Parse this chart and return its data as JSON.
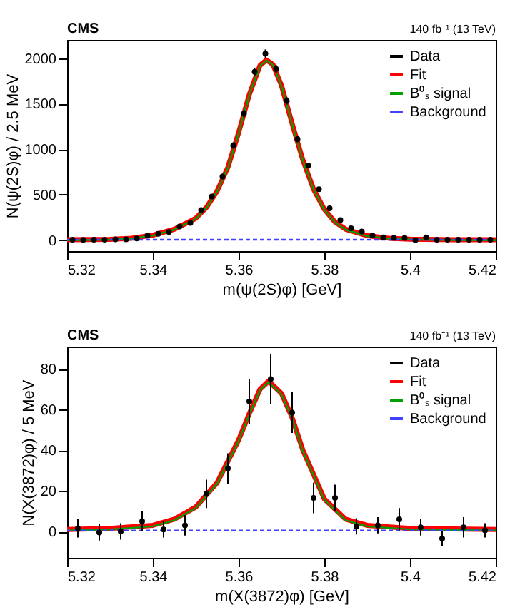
{
  "chart_data": [
    {
      "type": "scatter",
      "xlabel": "m(ψ(2S)φ) [GeV]",
      "ylabel": "N(ψ(2S)φ) / 2.5 MeV",
      "annotations": [
        "CMS",
        "140 fb⁻¹ (13 TeV)"
      ],
      "xlim": [
        5.32,
        5.42
      ],
      "xticks": [
        5.32,
        5.34,
        5.36,
        5.38,
        {
          "value": 5.4,
          "label": "5.4"
        },
        5.42
      ],
      "ylim": [
        -120,
        2200
      ],
      "yticks": [
        0,
        500,
        1000,
        1500,
        2000
      ],
      "legend": "top right",
      "grid": false,
      "series": [
        {
          "name": "Fit",
          "type": "line",
          "color": "#ff0000",
          "x": [
            5.32,
            5.33,
            5.335,
            5.34,
            5.345,
            5.35,
            5.3525,
            5.355,
            5.3575,
            5.36,
            5.3625,
            5.365,
            5.3665,
            5.368,
            5.37,
            5.3725,
            5.375,
            5.3775,
            5.38,
            5.3825,
            5.385,
            5.39,
            5.395,
            5.4,
            5.41,
            5.42
          ],
          "values": [
            5,
            10,
            22,
            55,
            120,
            240,
            360,
            540,
            800,
            1180,
            1600,
            1920,
            1980,
            1930,
            1700,
            1280,
            880,
            560,
            340,
            200,
            120,
            50,
            22,
            12,
            6,
            5
          ]
        },
        {
          "name": "B⁰ₛ signal",
          "type": "line",
          "color": "#00a000",
          "x": [
            5.32,
            5.33,
            5.335,
            5.34,
            5.345,
            5.35,
            5.3525,
            5.355,
            5.3575,
            5.36,
            5.3625,
            5.365,
            5.3665,
            5.368,
            5.37,
            5.3725,
            5.375,
            5.3775,
            5.38,
            5.3825,
            5.385,
            5.39,
            5.395,
            5.4,
            5.41,
            5.42
          ],
          "values": [
            0,
            5,
            17,
            50,
            115,
            235,
            355,
            535,
            795,
            1175,
            1595,
            1915,
            1975,
            1925,
            1695,
            1275,
            875,
            555,
            335,
            195,
            115,
            45,
            17,
            7,
            1,
            0
          ]
        },
        {
          "name": "Background",
          "type": "line",
          "color": "#4040ff",
          "line_style": "dashed",
          "x": [
            5.32,
            5.42
          ],
          "values": [
            5,
            5
          ]
        },
        {
          "name": "Data",
          "type": "scatter",
          "color": "#000000",
          "marker": "circle",
          "x": [
            5.32125,
            5.32375,
            5.32625,
            5.32875,
            5.33125,
            5.33375,
            5.33625,
            5.33875,
            5.34125,
            5.34375,
            5.34625,
            5.34875,
            5.35125,
            5.35375,
            5.35625,
            5.35875,
            5.36125,
            5.36375,
            5.36625,
            5.36875,
            5.37125,
            5.37375,
            5.37625,
            5.37875,
            5.38125,
            5.38375,
            5.38625,
            5.38875,
            5.39125,
            5.39375,
            5.39625,
            5.39875,
            5.40125,
            5.40375,
            5.40625,
            5.40875,
            5.41125,
            5.41375,
            5.41625,
            5.41875
          ],
          "values": [
            5,
            3,
            5,
            5,
            10,
            10,
            20,
            50,
            70,
            90,
            150,
            190,
            330,
            480,
            700,
            1040,
            1390,
            1850,
            2050,
            1880,
            1530,
            1110,
            820,
            560,
            350,
            220,
            130,
            95,
            50,
            30,
            25,
            25,
            0,
            30,
            5,
            5,
            5,
            5,
            5,
            5
          ],
          "errors": [
            15,
            15,
            15,
            15,
            15,
            15,
            15,
            15,
            15,
            15,
            15,
            15,
            20,
            25,
            30,
            35,
            40,
            45,
            45,
            45,
            40,
            35,
            30,
            25,
            20,
            15,
            15,
            15,
            15,
            15,
            15,
            15,
            15,
            15,
            15,
            15,
            15,
            15,
            15,
            15
          ]
        }
      ]
    },
    {
      "type": "scatter",
      "xlabel": "m(X(3872)φ) [GeV]",
      "ylabel": "N(X(3872)φ) / 5 MeV",
      "annotations": [
        "CMS",
        "140 fb⁻¹ (13 TeV)"
      ],
      "xlim": [
        5.32,
        5.42
      ],
      "xticks": [
        5.32,
        5.34,
        5.36,
        5.38,
        {
          "value": 5.4,
          "label": "5.4"
        },
        5.42
      ],
      "ylim": [
        -13,
        91
      ],
      "yticks": [
        0,
        20,
        40,
        60,
        80
      ],
      "legend": "top right",
      "grid": false,
      "series": [
        {
          "name": "Fit",
          "type": "line",
          "color": "#ff0000",
          "x": [
            5.32,
            5.33,
            5.34,
            5.345,
            5.35,
            5.355,
            5.36,
            5.3625,
            5.365,
            5.367,
            5.37,
            5.3725,
            5.375,
            5.38,
            5.385,
            5.39,
            5.4,
            5.42
          ],
          "values": [
            1,
            1.5,
            3,
            6,
            12,
            24,
            45,
            58,
            70,
            74,
            68,
            56,
            40,
            16,
            6,
            3,
            1.5,
            1
          ]
        },
        {
          "name": "B⁰ₛ signal",
          "type": "line",
          "color": "#00a000",
          "x": [
            5.32,
            5.33,
            5.34,
            5.345,
            5.35,
            5.355,
            5.36,
            5.3625,
            5.365,
            5.367,
            5.37,
            5.3725,
            5.375,
            5.38,
            5.385,
            5.39,
            5.4,
            5.42
          ],
          "values": [
            0.5,
            1,
            2.5,
            5.5,
            11.5,
            23.5,
            44.5,
            57.5,
            69.5,
            73.5,
            67.5,
            55.5,
            39.5,
            15.5,
            5.5,
            2.5,
            1,
            0.5
          ]
        },
        {
          "name": "Background",
          "type": "line",
          "color": "#4040ff",
          "line_style": "dashed",
          "x": [
            5.32,
            5.42
          ],
          "values": [
            0.5,
            0.5
          ]
        },
        {
          "name": "Data",
          "type": "scatter",
          "color": "#000000",
          "marker": "circle",
          "x": [
            5.3225,
            5.3275,
            5.3325,
            5.3375,
            5.3425,
            5.3475,
            5.3525,
            5.3575,
            5.3625,
            5.3675,
            5.3725,
            5.3775,
            5.3825,
            5.3875,
            5.3925,
            5.3975,
            5.4025,
            5.4075,
            5.4125,
            5.4175
          ],
          "values": [
            1.5,
            -0.5,
            0,
            5,
            1,
            3,
            18.5,
            31,
            64,
            75,
            58.5,
            16.5,
            16.5,
            2.5,
            3,
            6,
            2,
            -3.5,
            2,
            0.5
          ],
          "errors": [
            4.5,
            4,
            4,
            5,
            4,
            5,
            7,
            7.5,
            11,
            12.5,
            10,
            7.5,
            6.5,
            4,
            4,
            5.5,
            4,
            3.5,
            5,
            3.5
          ]
        }
      ]
    }
  ]
}
